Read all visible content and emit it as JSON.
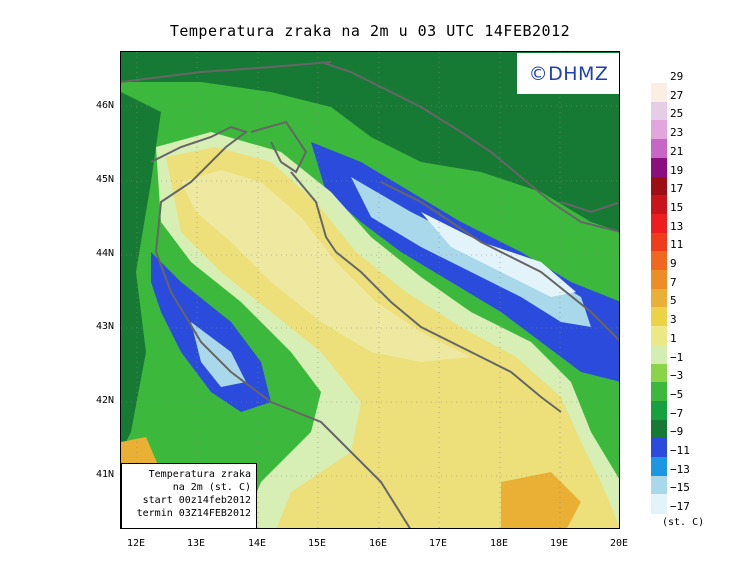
{
  "title": "Temperatura zraka na 2m u 03 UTC 14FEB2012",
  "logo": "©DHMZ",
  "info_box": {
    "line1": "Temperatura zraka",
    "line2": "na 2m (st. C)",
    "line3": "start 00z14feb2012",
    "line4": "termin 03Z14FEB2012"
  },
  "lat_labels": [
    "46N",
    "45N",
    "44N",
    "43N",
    "42N",
    "41N"
  ],
  "lon_labels": [
    "12E",
    "13E",
    "14E",
    "15E",
    "16E",
    "17E",
    "18E",
    "19E",
    "20E"
  ],
  "legend": {
    "labels": [
      "29",
      "27",
      "25",
      "23",
      "21",
      "19",
      "17",
      "15",
      "13",
      "11",
      "9",
      "7",
      "5",
      "3",
      "1",
      "−1",
      "−3",
      "−5",
      "−7",
      "−9",
      "−11",
      "−13",
      "−15",
      "−17"
    ],
    "colors": [
      "#fbeee2",
      "#e5cde5",
      "#e3a5de",
      "#c766c5",
      "#8c0f7e",
      "#9e0f13",
      "#c8141a",
      "#ef1e1e",
      "#f13c1c",
      "#f06820",
      "#ee8c25",
      "#eab035",
      "#ecd245",
      "#ede886",
      "#d4edb0",
      "#8ad44a",
      "#3cb93c",
      "#17a03e",
      "#177a34",
      "#2b4bdc",
      "#1d96e4",
      "#a8d8ea",
      "#e2f4f9"
    ],
    "units": "(st. C)"
  },
  "colors": {
    "yellow_sea": "#ede07a",
    "pale_yellow": "#eee8a0",
    "light_green": "#d7eeb4",
    "green": "#3cb93c",
    "dark_green": "#177a34",
    "blue": "#2b4bdc",
    "light_blue": "#a8d8ea",
    "coast_line": "#666666"
  }
}
